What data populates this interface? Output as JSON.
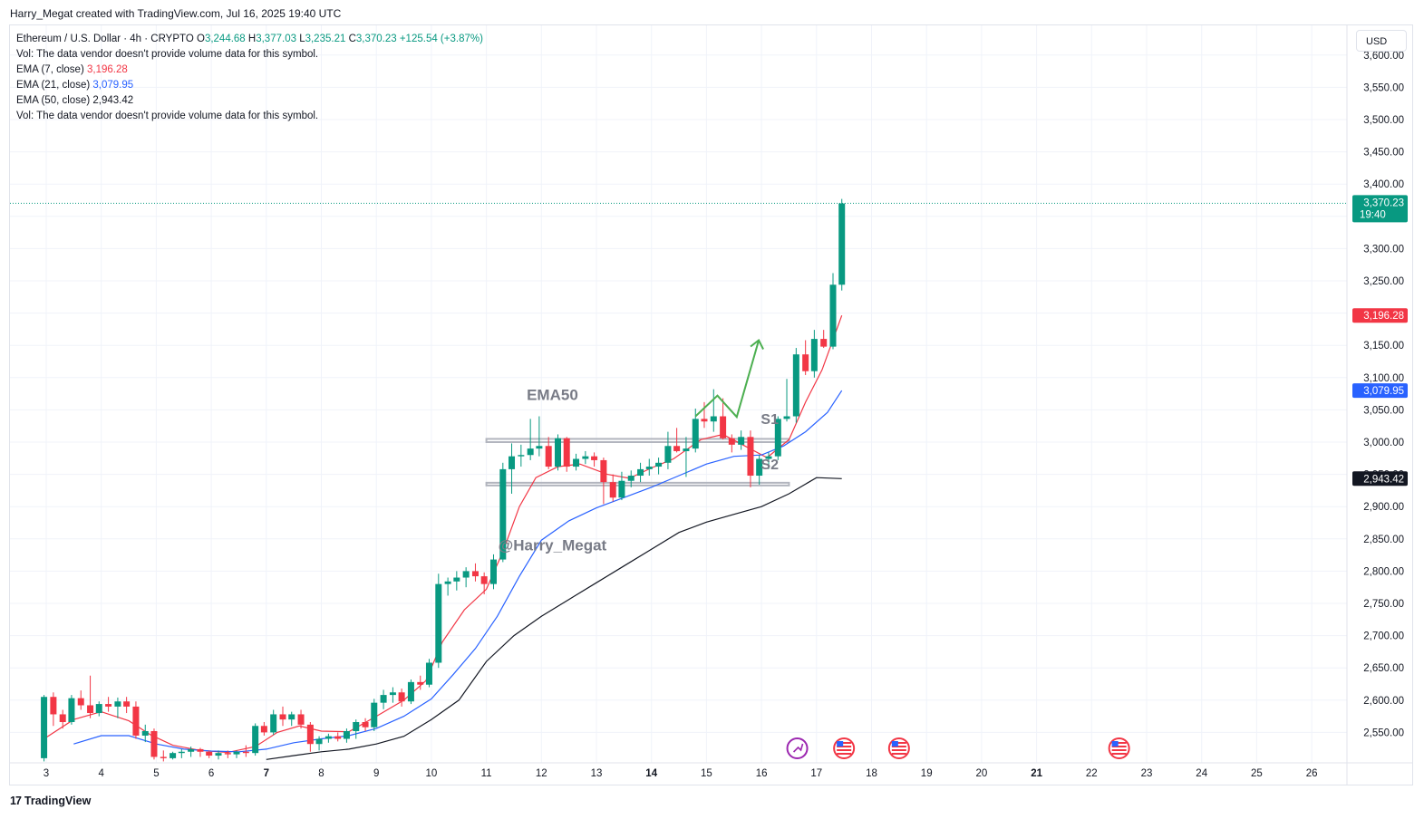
{
  "credit": "Harry_Megat created with TradingView.com, Jul 16, 2025 19:40 UTC",
  "footer_logo": "TradingView",
  "currency": "USD",
  "legend": {
    "symbol": "Ethereum / U.S. Dollar · 4h · CRYPTO",
    "open_label": "O",
    "open": "3,244.68",
    "high_label": "H",
    "high": "3,377.03",
    "low_label": "L",
    "low": "3,235.21",
    "close_label": "C",
    "close": "3,370.23",
    "change": "+125.54 (+3.87%)",
    "vol_note_1": "Vol: The data vendor doesn't provide volume data for this symbol.",
    "ema7_label": "EMA (7, close)",
    "ema7_value": "3,196.28",
    "ema21_label": "EMA (21, close)",
    "ema21_value": "3,079.95",
    "ema50_label": "EMA (50, close)",
    "ema50_value": "2,943.42",
    "vol_note_2": "Vol: The data vendor doesn't provide volume data for this symbol."
  },
  "colors": {
    "up": "#089981",
    "down": "#f23645",
    "ema7": "#f23645",
    "ema21": "#2962ff",
    "ema50": "#131722",
    "arrow": "#4caf50",
    "support": "#b2b5be",
    "annotation": "#787b86"
  },
  "icons": [
    "economic-event-icon",
    "us-flag-icon",
    "us-flag-icon",
    "us-flag-icon"
  ],
  "chart_data": {
    "type": "candlestick",
    "title": "Ethereum / U.S. Dollar · 4h · CRYPTO",
    "timeframe": "4h",
    "x_tick_labels": [
      "3",
      "4",
      "5",
      "6",
      "7",
      "8",
      "9",
      "10",
      "11",
      "12",
      "13",
      "14",
      "15",
      "16",
      "17",
      "18",
      "19",
      "20",
      "21",
      "22",
      "23",
      "24",
      "25",
      "26"
    ],
    "x_tick_days": [
      3,
      4,
      5,
      6,
      7,
      8,
      9,
      10,
      11,
      12,
      13,
      14,
      15,
      16,
      17,
      18,
      19,
      20,
      21,
      22,
      23,
      24,
      25,
      26
    ],
    "y_tick_labels": [
      "2,550.00",
      "2,600.00",
      "2,650.00",
      "2,700.00",
      "2,750.00",
      "2,800.00",
      "2,850.00",
      "2,900.00",
      "2,950.00",
      "3,000.00",
      "3,050.00",
      "3,100.00",
      "3,150.00",
      "3,200.00",
      "3,250.00",
      "3,300.00",
      "3,350.00",
      "3,400.00",
      "3,450.00",
      "3,500.00",
      "3,550.00",
      "3,600.00"
    ],
    "y_ticks": [
      2550,
      2600,
      2650,
      2700,
      2750,
      2800,
      2850,
      2900,
      2950,
      3000,
      3050,
      3100,
      3150,
      3200,
      3250,
      3300,
      3350,
      3400,
      3450,
      3500,
      3550,
      3600
    ],
    "ylim": [
      2510,
      3615
    ],
    "xlim": [
      2.7,
      27.0
    ],
    "grid": true,
    "candles": [
      {
        "t": 2.96,
        "o": 2510,
        "h": 2608,
        "l": 2505,
        "c": 2605
      },
      {
        "t": 3.13,
        "o": 2605,
        "h": 2612,
        "l": 2560,
        "c": 2578
      },
      {
        "t": 3.3,
        "o": 2578,
        "h": 2585,
        "l": 2556,
        "c": 2566
      },
      {
        "t": 3.46,
        "o": 2566,
        "h": 2608,
        "l": 2562,
        "c": 2603
      },
      {
        "t": 3.63,
        "o": 2603,
        "h": 2615,
        "l": 2585,
        "c": 2592
      },
      {
        "t": 3.8,
        "o": 2592,
        "h": 2638,
        "l": 2572,
        "c": 2580
      },
      {
        "t": 3.96,
        "o": 2580,
        "h": 2598,
        "l": 2575,
        "c": 2594
      },
      {
        "t": 4.13,
        "o": 2594,
        "h": 2605,
        "l": 2582,
        "c": 2590
      },
      {
        "t": 4.3,
        "o": 2590,
        "h": 2604,
        "l": 2572,
        "c": 2598
      },
      {
        "t": 4.46,
        "o": 2598,
        "h": 2605,
        "l": 2580,
        "c": 2590
      },
      {
        "t": 4.63,
        "o": 2590,
        "h": 2598,
        "l": 2540,
        "c": 2545
      },
      {
        "t": 4.8,
        "o": 2545,
        "h": 2562,
        "l": 2535,
        "c": 2552
      },
      {
        "t": 4.96,
        "o": 2552,
        "h": 2556,
        "l": 2508,
        "c": 2512
      },
      {
        "t": 5.13,
        "o": 2512,
        "h": 2522,
        "l": 2505,
        "c": 2510
      },
      {
        "t": 5.3,
        "o": 2510,
        "h": 2520,
        "l": 2508,
        "c": 2518
      },
      {
        "t": 5.46,
        "o": 2518,
        "h": 2524,
        "l": 2510,
        "c": 2520
      },
      {
        "t": 5.63,
        "o": 2520,
        "h": 2528,
        "l": 2512,
        "c": 2524
      },
      {
        "t": 5.8,
        "o": 2524,
        "h": 2526,
        "l": 2512,
        "c": 2520
      },
      {
        "t": 5.96,
        "o": 2520,
        "h": 2522,
        "l": 2510,
        "c": 2514
      },
      {
        "t": 6.13,
        "o": 2514,
        "h": 2522,
        "l": 2508,
        "c": 2518
      },
      {
        "t": 6.3,
        "o": 2518,
        "h": 2522,
        "l": 2510,
        "c": 2516
      },
      {
        "t": 6.46,
        "o": 2516,
        "h": 2522,
        "l": 2510,
        "c": 2520
      },
      {
        "t": 6.63,
        "o": 2520,
        "h": 2530,
        "l": 2512,
        "c": 2518
      },
      {
        "t": 6.8,
        "o": 2518,
        "h": 2564,
        "l": 2514,
        "c": 2560
      },
      {
        "t": 6.96,
        "o": 2560,
        "h": 2566,
        "l": 2545,
        "c": 2550
      },
      {
        "t": 7.13,
        "o": 2550,
        "h": 2585,
        "l": 2546,
        "c": 2578
      },
      {
        "t": 7.3,
        "o": 2578,
        "h": 2590,
        "l": 2560,
        "c": 2570
      },
      {
        "t": 7.46,
        "o": 2570,
        "h": 2582,
        "l": 2560,
        "c": 2578
      },
      {
        "t": 7.63,
        "o": 2578,
        "h": 2585,
        "l": 2556,
        "c": 2562
      },
      {
        "t": 7.8,
        "o": 2562,
        "h": 2566,
        "l": 2520,
        "c": 2532
      },
      {
        "t": 7.96,
        "o": 2532,
        "h": 2544,
        "l": 2522,
        "c": 2540
      },
      {
        "t": 8.13,
        "o": 2540,
        "h": 2548,
        "l": 2534,
        "c": 2544
      },
      {
        "t": 8.3,
        "o": 2544,
        "h": 2550,
        "l": 2536,
        "c": 2540
      },
      {
        "t": 8.46,
        "o": 2540,
        "h": 2556,
        "l": 2534,
        "c": 2552
      },
      {
        "t": 8.63,
        "o": 2552,
        "h": 2570,
        "l": 2540,
        "c": 2566
      },
      {
        "t": 8.8,
        "o": 2566,
        "h": 2572,
        "l": 2552,
        "c": 2558
      },
      {
        "t": 8.96,
        "o": 2558,
        "h": 2602,
        "l": 2552,
        "c": 2596
      },
      {
        "t": 9.13,
        "o": 2596,
        "h": 2616,
        "l": 2586,
        "c": 2608
      },
      {
        "t": 9.3,
        "o": 2608,
        "h": 2620,
        "l": 2596,
        "c": 2612
      },
      {
        "t": 9.46,
        "o": 2612,
        "h": 2618,
        "l": 2590,
        "c": 2598
      },
      {
        "t": 9.63,
        "o": 2598,
        "h": 2632,
        "l": 2594,
        "c": 2628
      },
      {
        "t": 9.8,
        "o": 2628,
        "h": 2638,
        "l": 2616,
        "c": 2624
      },
      {
        "t": 9.96,
        "o": 2624,
        "h": 2664,
        "l": 2620,
        "c": 2658
      },
      {
        "t": 10.13,
        "o": 2658,
        "h": 2796,
        "l": 2650,
        "c": 2780
      },
      {
        "t": 10.3,
        "o": 2780,
        "h": 2790,
        "l": 2762,
        "c": 2784
      },
      {
        "t": 10.46,
        "o": 2784,
        "h": 2800,
        "l": 2770,
        "c": 2790
      },
      {
        "t": 10.63,
        "o": 2790,
        "h": 2806,
        "l": 2775,
        "c": 2800
      },
      {
        "t": 10.8,
        "o": 2800,
        "h": 2812,
        "l": 2784,
        "c": 2792
      },
      {
        "t": 10.96,
        "o": 2792,
        "h": 2798,
        "l": 2764,
        "c": 2780
      },
      {
        "t": 11.13,
        "o": 2780,
        "h": 2826,
        "l": 2772,
        "c": 2818
      },
      {
        "t": 11.3,
        "o": 2818,
        "h": 2968,
        "l": 2814,
        "c": 2958
      },
      {
        "t": 11.46,
        "o": 2958,
        "h": 2998,
        "l": 2920,
        "c": 2978
      },
      {
        "t": 11.63,
        "o": 2978,
        "h": 2996,
        "l": 2962,
        "c": 2980
      },
      {
        "t": 11.8,
        "o": 2980,
        "h": 3036,
        "l": 2972,
        "c": 2990
      },
      {
        "t": 11.96,
        "o": 2990,
        "h": 3040,
        "l": 2978,
        "c": 2994
      },
      {
        "t": 12.13,
        "o": 2994,
        "h": 3008,
        "l": 2958,
        "c": 2962
      },
      {
        "t": 12.3,
        "o": 2962,
        "h": 3012,
        "l": 2956,
        "c": 3006
      },
      {
        "t": 12.46,
        "o": 3006,
        "h": 3008,
        "l": 2954,
        "c": 2962
      },
      {
        "t": 12.63,
        "o": 2962,
        "h": 2982,
        "l": 2956,
        "c": 2974
      },
      {
        "t": 12.8,
        "o": 2974,
        "h": 2986,
        "l": 2966,
        "c": 2978
      },
      {
        "t": 12.96,
        "o": 2978,
        "h": 2984,
        "l": 2962,
        "c": 2972
      },
      {
        "t": 13.13,
        "o": 2972,
        "h": 2976,
        "l": 2904,
        "c": 2938
      },
      {
        "t": 13.3,
        "o": 2938,
        "h": 2950,
        "l": 2908,
        "c": 2914
      },
      {
        "t": 13.46,
        "o": 2914,
        "h": 2954,
        "l": 2910,
        "c": 2940
      },
      {
        "t": 13.63,
        "o": 2940,
        "h": 2956,
        "l": 2930,
        "c": 2948
      },
      {
        "t": 13.8,
        "o": 2948,
        "h": 2968,
        "l": 2938,
        "c": 2958
      },
      {
        "t": 13.96,
        "o": 2958,
        "h": 2974,
        "l": 2948,
        "c": 2962
      },
      {
        "t": 14.13,
        "o": 2962,
        "h": 2976,
        "l": 2950,
        "c": 2968
      },
      {
        "t": 14.3,
        "o": 2968,
        "h": 3016,
        "l": 2958,
        "c": 2994
      },
      {
        "t": 14.46,
        "o": 2994,
        "h": 3022,
        "l": 2984,
        "c": 2986
      },
      {
        "t": 14.63,
        "o": 2986,
        "h": 3008,
        "l": 2946,
        "c": 2990
      },
      {
        "t": 14.8,
        "o": 2990,
        "h": 3052,
        "l": 2984,
        "c": 3036
      },
      {
        "t": 14.96,
        "o": 3036,
        "h": 3062,
        "l": 3022,
        "c": 3032
      },
      {
        "t": 15.13,
        "o": 3032,
        "h": 3082,
        "l": 3016,
        "c": 3040
      },
      {
        "t": 15.3,
        "o": 3040,
        "h": 3068,
        "l": 3004,
        "c": 3006
      },
      {
        "t": 15.46,
        "o": 3006,
        "h": 3012,
        "l": 2984,
        "c": 2996
      },
      {
        "t": 15.63,
        "o": 2996,
        "h": 3018,
        "l": 2988,
        "c": 3008
      },
      {
        "t": 15.8,
        "o": 3008,
        "h": 3018,
        "l": 2930,
        "c": 2948
      },
      {
        "t": 15.96,
        "o": 2948,
        "h": 2980,
        "l": 2934,
        "c": 2974
      },
      {
        "t": 16.13,
        "o": 2974,
        "h": 2984,
        "l": 2958,
        "c": 2978
      },
      {
        "t": 16.3,
        "o": 2978,
        "h": 3040,
        "l": 2972,
        "c": 3036
      },
      {
        "t": 16.46,
        "o": 3036,
        "h": 3098,
        "l": 3032,
        "c": 3040
      },
      {
        "t": 16.63,
        "o": 3040,
        "h": 3146,
        "l": 3030,
        "c": 3136
      },
      {
        "t": 16.8,
        "o": 3136,
        "h": 3158,
        "l": 3104,
        "c": 3110
      },
      {
        "t": 16.96,
        "o": 3110,
        "h": 3174,
        "l": 3100,
        "c": 3160
      },
      {
        "t": 17.13,
        "o": 3160,
        "h": 3174,
        "l": 3146,
        "c": 3148
      },
      {
        "t": 17.3,
        "o": 3148,
        "h": 3262,
        "l": 3144,
        "c": 3244
      },
      {
        "t": 17.46,
        "o": 3244,
        "h": 3377,
        "l": 3235,
        "c": 3370
      }
    ],
    "series": [
      {
        "name": "EMA (7, close)",
        "color": "#f23645",
        "points": [
          [
            2.96,
            2540
          ],
          [
            3.5,
            2570
          ],
          [
            4.0,
            2582
          ],
          [
            4.5,
            2568
          ],
          [
            4.9,
            2546
          ],
          [
            5.3,
            2530
          ],
          [
            5.8,
            2522
          ],
          [
            6.3,
            2519
          ],
          [
            6.8,
            2528
          ],
          [
            7.2,
            2550
          ],
          [
            7.6,
            2560
          ],
          [
            8.0,
            2552
          ],
          [
            8.5,
            2551
          ],
          [
            9.0,
            2575
          ],
          [
            9.5,
            2600
          ],
          [
            9.9,
            2630
          ],
          [
            10.2,
            2690
          ],
          [
            10.6,
            2740
          ],
          [
            11.0,
            2772
          ],
          [
            11.3,
            2830
          ],
          [
            11.6,
            2900
          ],
          [
            11.9,
            2945
          ],
          [
            12.3,
            2962
          ],
          [
            12.7,
            2966
          ],
          [
            13.2,
            2950
          ],
          [
            13.6,
            2944
          ],
          [
            14.0,
            2960
          ],
          [
            14.4,
            2974
          ],
          [
            14.9,
            3004
          ],
          [
            15.3,
            3012
          ],
          [
            15.7,
            2994
          ],
          [
            16.1,
            2976
          ],
          [
            16.5,
            3004
          ],
          [
            16.8,
            3062
          ],
          [
            17.1,
            3112
          ],
          [
            17.46,
            3196.28
          ]
        ]
      },
      {
        "name": "EMA (21, close)",
        "color": "#2962ff",
        "points": [
          [
            3.5,
            2532
          ],
          [
            4.0,
            2545
          ],
          [
            4.5,
            2545
          ],
          [
            5.0,
            2532
          ],
          [
            5.5,
            2524
          ],
          [
            6.0,
            2521
          ],
          [
            6.5,
            2520
          ],
          [
            7.0,
            2524
          ],
          [
            7.5,
            2534
          ],
          [
            8.0,
            2540
          ],
          [
            8.5,
            2545
          ],
          [
            9.0,
            2556
          ],
          [
            9.5,
            2575
          ],
          [
            10.0,
            2602
          ],
          [
            10.4,
            2640
          ],
          [
            10.8,
            2680
          ],
          [
            11.2,
            2730
          ],
          [
            11.6,
            2792
          ],
          [
            12.0,
            2848
          ],
          [
            12.5,
            2878
          ],
          [
            13.0,
            2898
          ],
          [
            13.5,
            2914
          ],
          [
            14.0,
            2930
          ],
          [
            14.5,
            2948
          ],
          [
            15.0,
            2966
          ],
          [
            15.5,
            2978
          ],
          [
            16.0,
            2980
          ],
          [
            16.4,
            2994
          ],
          [
            16.8,
            3016
          ],
          [
            17.2,
            3046
          ],
          [
            17.46,
            3079.95
          ]
        ]
      },
      {
        "name": "EMA (50, close)",
        "color": "#131722",
        "points": [
          [
            7.0,
            2508
          ],
          [
            7.5,
            2514
          ],
          [
            8.0,
            2520
          ],
          [
            8.5,
            2524
          ],
          [
            9.0,
            2532
          ],
          [
            9.5,
            2544
          ],
          [
            10.0,
            2570
          ],
          [
            10.5,
            2600
          ],
          [
            11.0,
            2660
          ],
          [
            11.5,
            2700
          ],
          [
            12.0,
            2730
          ],
          [
            12.5,
            2756
          ],
          [
            13.0,
            2782
          ],
          [
            13.5,
            2808
          ],
          [
            14.0,
            2834
          ],
          [
            14.5,
            2860
          ],
          [
            15.0,
            2876
          ],
          [
            15.5,
            2888
          ],
          [
            16.0,
            2900
          ],
          [
            16.5,
            2920
          ],
          [
            17.0,
            2945
          ],
          [
            17.46,
            2943.42
          ]
        ]
      }
    ],
    "support_zones": [
      {
        "label": "S1",
        "top": 3005,
        "bottom": 3000,
        "x_from": 11.0,
        "x_to": 16.5
      },
      {
        "label": "S2",
        "top": 2937,
        "bottom": 2933,
        "x_from": 11.0,
        "x_to": 16.5
      }
    ],
    "annotations": [
      {
        "text": "EMA50",
        "x": 12.2,
        "y": 3065
      },
      {
        "text": "S1",
        "x": 16.15,
        "y": 3028
      },
      {
        "text": "S2",
        "x": 16.15,
        "y": 2958
      },
      {
        "text": "@Harry_Megat",
        "x": 12.2,
        "y": 2832
      }
    ],
    "projected_path": [
      [
        14.8,
        3040
      ],
      [
        15.2,
        3072
      ],
      [
        15.55,
        3039
      ],
      [
        15.95,
        3158
      ]
    ],
    "last_price": {
      "value": 3370.23,
      "label": "3,370.23",
      "time": "19:40"
    },
    "price_labels": [
      {
        "value": 3196.28,
        "label": "3,196.28",
        "color": "#f23645"
      },
      {
        "value": 3079.95,
        "label": "3,079.95",
        "color": "#2962ff"
      },
      {
        "value": 2943.42,
        "label": "2,943.42",
        "color": "#131722"
      }
    ],
    "event_markers": [
      {
        "x": 16.65,
        "icon": "economic-event-icon"
      },
      {
        "x": 17.5,
        "icon": "us-flag-icon"
      },
      {
        "x": 18.5,
        "icon": "us-flag-icon"
      },
      {
        "x": 22.5,
        "icon": "us-flag-icon"
      }
    ]
  }
}
